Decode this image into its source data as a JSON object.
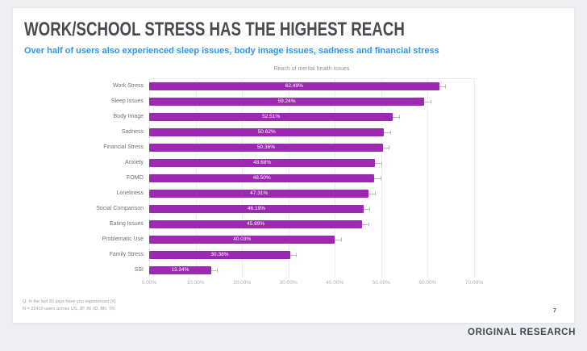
{
  "page": {
    "title": "WORK/SCHOOL STRESS HAS THE HIGHEST REACH",
    "subtitle": "Over half of users also experienced sleep issues, body image issues, sadness and financial stress",
    "footnote_line1": "Q: In the last 30 days have you experienced [X]",
    "footnote_line2": "N = 22410 users across US, JP, IN, ID, BR, TR,",
    "page_number": "7",
    "footer_label": "ORIGINAL RESEARCH"
  },
  "colors": {
    "bar": "#9d28b1",
    "subtitle_blue": "#2b96f2",
    "title_gray": "#474c52",
    "error_bar_gray": "#b9b9b9",
    "background": "#edeff3",
    "card": "#ffffff"
  },
  "chart_data": {
    "type": "bar",
    "orientation": "horizontal",
    "title": "Reach of mental health issues",
    "categories": [
      "Work Stress",
      "Sleep Issues",
      "Body Image",
      "Sadness",
      "Financial Stress",
      "Anxiety",
      "FOMO",
      "Loneliness",
      "Social Comparison",
      "Eating Issues",
      "Problematic Use",
      "Family Stress",
      "SSI"
    ],
    "values": [
      62.49,
      59.24,
      52.51,
      50.62,
      50.36,
      48.68,
      48.5,
      47.31,
      46.19,
      45.89,
      40.03,
      30.38,
      13.34
    ],
    "value_labels": [
      "62.49%",
      "59.24%",
      "52.51%",
      "50.62%",
      "50.36%",
      "48.68%",
      "48.50%",
      "47.31%",
      "46.19%",
      "45.89%",
      "40.03%",
      "30.38%",
      "13.34%"
    ],
    "xlim": [
      0,
      70
    ],
    "x_ticks": [
      "0.00%",
      "10.00%",
      "20.00%",
      "30.00%",
      "40.00%",
      "50.00%",
      "60.00%",
      "70.00%"
    ],
    "error_bars": true,
    "error_approx_pct": 1.3,
    "grid": true,
    "legend": false,
    "value_label_position": "inside-center"
  }
}
